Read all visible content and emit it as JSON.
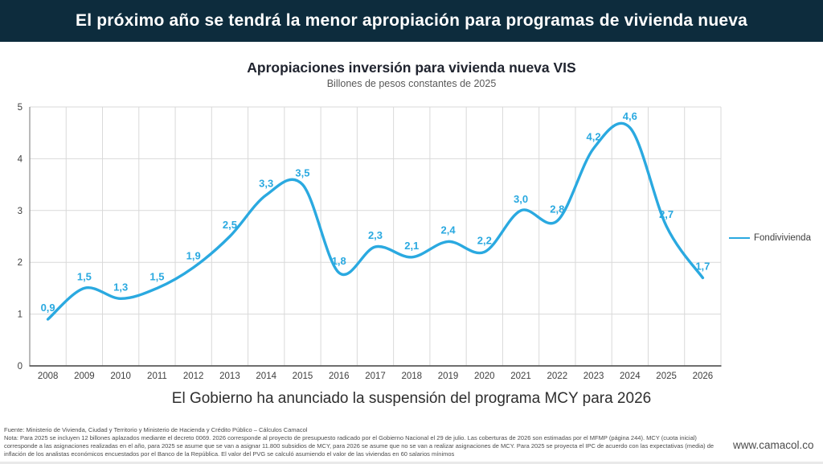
{
  "banner": {
    "title": "El próximo año se tendrá la menor apropiación para programas de vivienda nueva",
    "bg_color": "#0d2c3d",
    "text_color": "#ffffff"
  },
  "chart_data": {
    "type": "line",
    "title": "Apropiaciones inversión para vivienda nueva VIS",
    "subtitle": "Billones de pesos constantes de 2025",
    "categories": [
      "2008",
      "2009",
      "2010",
      "2011",
      "2012",
      "2013",
      "2014",
      "2015",
      "2016",
      "2017",
      "2018",
      "2019",
      "2020",
      "2021",
      "2022",
      "2023",
      "2024",
      "2025",
      "2026"
    ],
    "series": [
      {
        "name": "Fondivivienda",
        "values": [
          0.9,
          1.5,
          1.3,
          1.5,
          1.9,
          2.5,
          3.3,
          3.5,
          1.8,
          2.3,
          2.1,
          2.4,
          2.2,
          3.0,
          2.8,
          4.2,
          4.6,
          2.7,
          1.7
        ],
        "labels": [
          "0,9",
          "1,5",
          "1,3",
          "1,5",
          "1,9",
          "2,5",
          "3,3",
          "3,5",
          "1,8",
          "2,3",
          "2,1",
          "2,4",
          "2,2",
          "3,0",
          "2,8",
          "4,2",
          "4,6",
          "2,7",
          "1,7"
        ]
      }
    ],
    "ylim": [
      0,
      5
    ],
    "yticks": [
      0,
      1,
      2,
      3,
      4,
      5
    ],
    "grid": true,
    "smooth": true,
    "legend_position": "right",
    "style": {
      "line_color": "#2aa9e0",
      "data_label_color": "#2aa9e0",
      "grid_color": "#d9d9d9",
      "axis_color": "#595959",
      "left_axis_color": "#8c8c8c",
      "tick_label_color": "#404040"
    }
  },
  "annotation": {
    "text": "El Gobierno ha anunciado la suspensión del programa MCY para 2026"
  },
  "footer": {
    "fuente": "Fuente: Ministerio de Vivienda, Ciudad y Territorio y Ministerio de Hacienda y Crédito Público – Cálculos Camacol",
    "nota": "Nota: Para 2025 se incluyen 12 billones aplazados mediante el decreto 0069. 2026 corresponde al proyecto de presupuesto radicado por el Gobierno Nacional el 29 de julio. Las coberturas de 2026 son estimadas por el MFMP (página 244). MCY (cuota inicial) corresponde a las asignaciones realizadas en el año, para 2025 se asume que se van a asignar 11.800 subsidios de MCY, para 2026 se asume que no se van a realizar asignaciones de MCY. Para 2025 se proyecta el IPC de acuerdo con las expectativas (media) de inflación de los analistas económicos encuestados por el Banco de la República. El valor del PVG se calculó asumiendo el valor de las viviendas en 60 salarios mínimos",
    "website": "www.camacol.co"
  }
}
